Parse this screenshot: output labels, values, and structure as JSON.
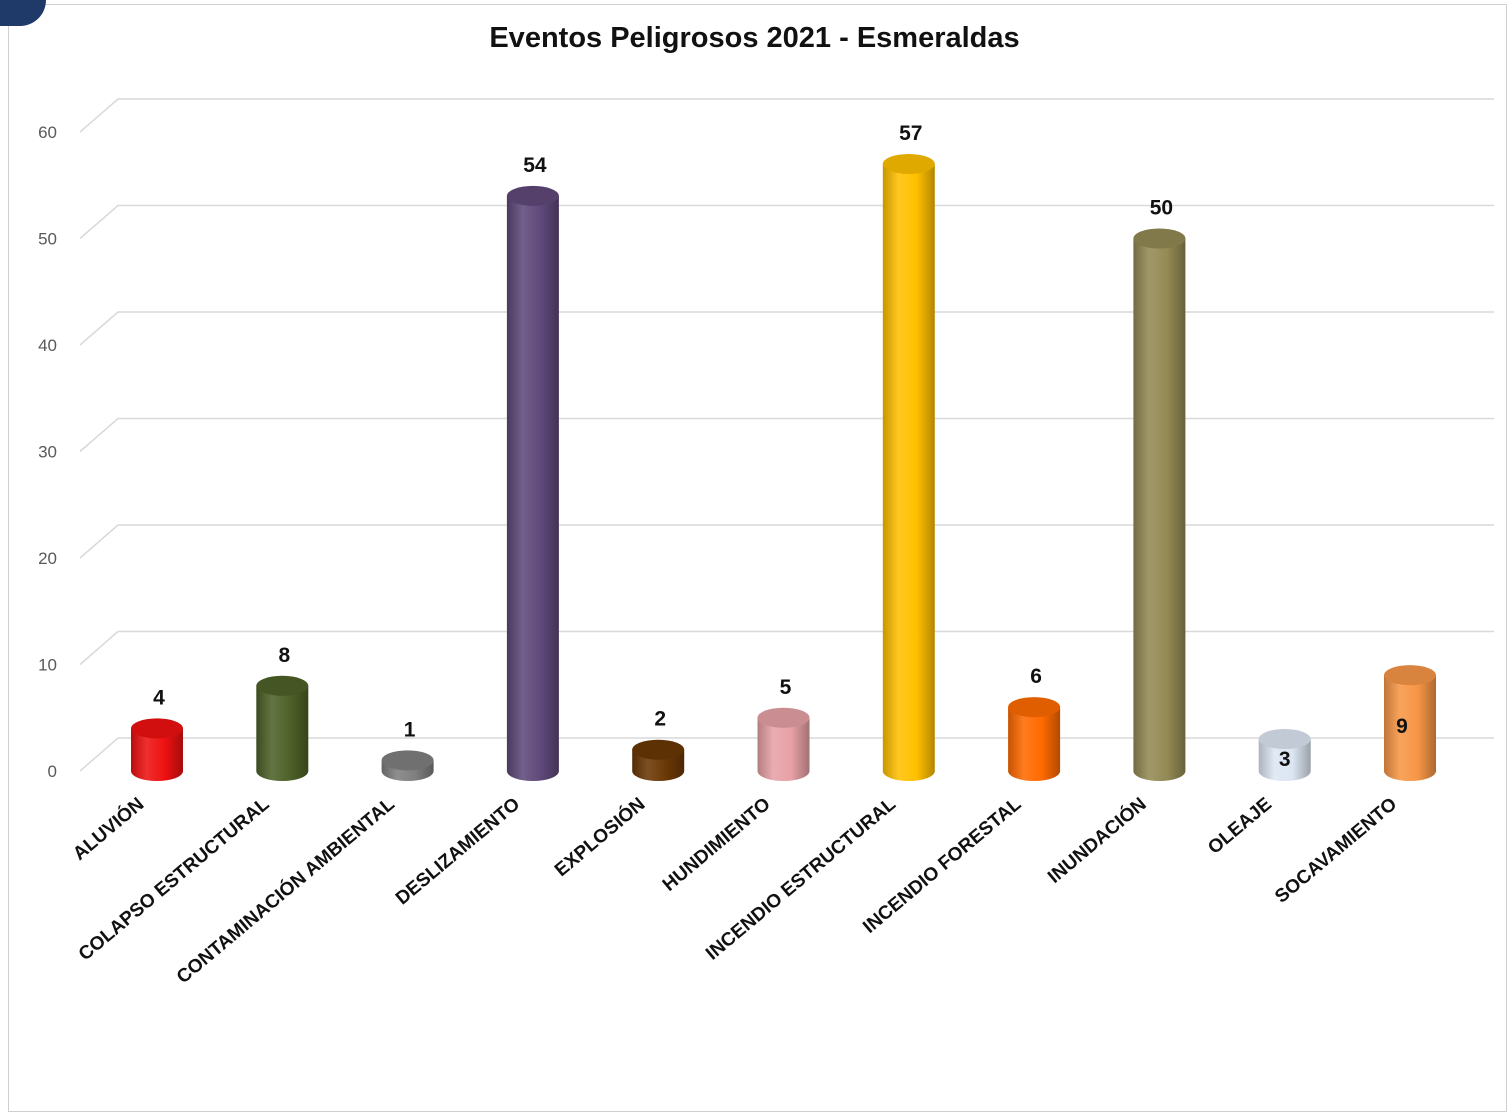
{
  "chart_data": {
    "type": "bar",
    "title": "Eventos Peligrosos 2021 - Esmeraldas",
    "categories": [
      "ALUVIÓN",
      "COLAPSO ESTRUCTURAL",
      "CONTAMINACIÓN AMBIENTAL",
      "DESLIZAMIENTO",
      "EXPLOSIÓN",
      "HUNDIMIENTO",
      "INCENDIO ESTRUCTURAL",
      "INCENDIO FORESTAL",
      "INUNDACIÓN",
      "OLEAJE",
      "SOCAVAMIENTO"
    ],
    "values": [
      4,
      8,
      1,
      54,
      2,
      5,
      57,
      6,
      50,
      3,
      9
    ],
    "colors": [
      "#ee1111",
      "#4e6128",
      "#7f7f7f",
      "#5f497a",
      "#6b3805",
      "#e6a1a6",
      "#ffc000",
      "#ff6a00",
      "#948a54",
      "#dce6f2",
      "#f79646"
    ],
    "yticks": [
      0,
      10,
      20,
      30,
      40,
      50,
      60
    ],
    "ylim": [
      0,
      60
    ],
    "xlabel": "",
    "ylabel": "",
    "grid": true,
    "legend": "none",
    "bar_shape": "cylinder",
    "data_labels": true
  }
}
